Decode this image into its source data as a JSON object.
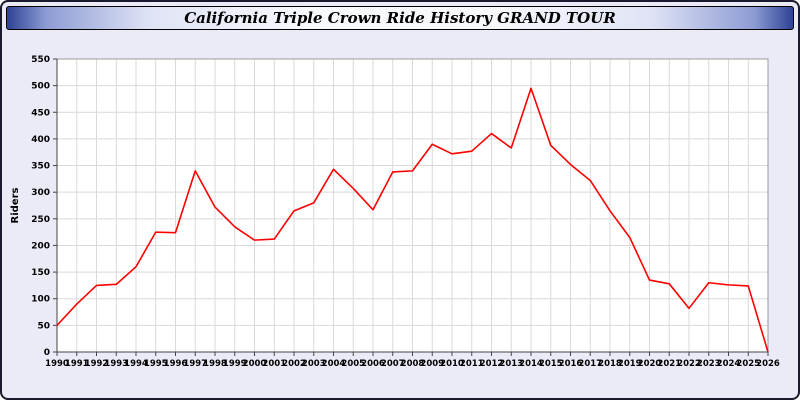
{
  "window": {
    "title": "California Triple Crown Ride History GRAND TOUR"
  },
  "colors": {
    "line": "#ff0000",
    "plot_background": "#ffffff",
    "panel_background": "#ebebf7",
    "grid": "#d9d9d9",
    "axis": "#444444",
    "titlebar_edge": "#2d4394"
  },
  "chart_data": {
    "type": "line",
    "title": "California Triple Crown Ride History GRAND TOUR",
    "xlabel": "",
    "ylabel": "Riders",
    "ylim": [
      0,
      550
    ],
    "ytick_step": 50,
    "grid": true,
    "legend": "none",
    "x": [
      1990,
      1991,
      1992,
      1993,
      1994,
      1995,
      1996,
      1997,
      1998,
      1999,
      2000,
      2001,
      2002,
      2003,
      2004,
      2005,
      2006,
      2007,
      2008,
      2009,
      2010,
      2011,
      2012,
      2013,
      2014,
      2015,
      2016,
      2017,
      2018,
      2019,
      2020,
      2021,
      2022,
      2023,
      2024,
      2025,
      2026
    ],
    "series": [
      {
        "name": "Riders",
        "color": "#ff0000",
        "values": [
          50,
          90,
          125,
          127,
          160,
          225,
          224,
          340,
          272,
          235,
          210,
          212,
          265,
          280,
          343,
          307,
          267,
          338,
          340,
          390,
          372,
          377,
          410,
          383,
          495,
          388,
          352,
          322,
          265,
          215,
          135,
          128,
          82,
          130,
          126,
          124,
          0
        ]
      }
    ]
  }
}
